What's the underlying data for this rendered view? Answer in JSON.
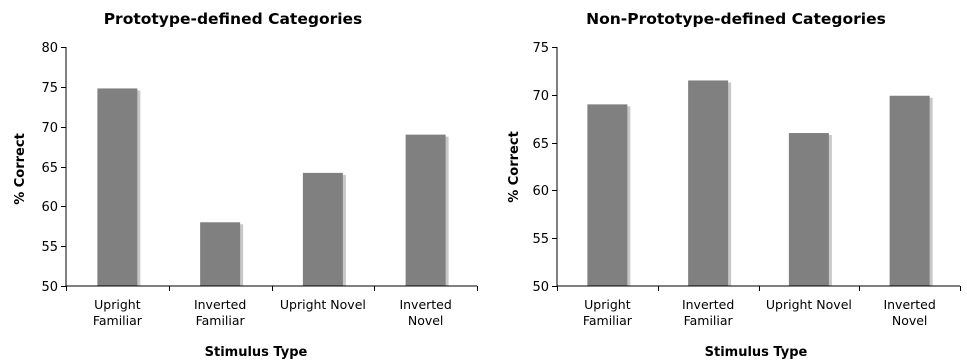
{
  "chart_data": [
    {
      "type": "bar",
      "title": "Prototype-defined Categories",
      "xlabel": "Stimulus Type",
      "ylabel": "% Correct",
      "categories": [
        [
          "Upright",
          "Familiar"
        ],
        [
          "Inverted",
          "Familiar"
        ],
        [
          "Upright Novel"
        ],
        [
          "Inverted",
          "Novel"
        ]
      ],
      "values": [
        74.8,
        58.0,
        64.2,
        69.0
      ],
      "ylim": [
        50,
        80
      ],
      "yticks": [
        50,
        55,
        60,
        65,
        70,
        75,
        80
      ],
      "grid": false,
      "bar_color": "#808080",
      "shadow_color": "#c8c8c8"
    },
    {
      "type": "bar",
      "title": "Non-Prototype-defined Categories",
      "xlabel": "Stimulus Type",
      "ylabel": "% Correct",
      "categories": [
        [
          "Upright",
          "Familiar"
        ],
        [
          "Inverted",
          "Familiar"
        ],
        [
          "Upright Novel"
        ],
        [
          "Inverted",
          "Novel"
        ]
      ],
      "values": [
        69.0,
        71.5,
        66.0,
        69.9
      ],
      "ylim": [
        50,
        75
      ],
      "yticks": [
        50,
        55,
        60,
        65,
        70,
        75
      ],
      "grid": false,
      "bar_color": "#808080",
      "shadow_color": "#c8c8c8"
    }
  ]
}
